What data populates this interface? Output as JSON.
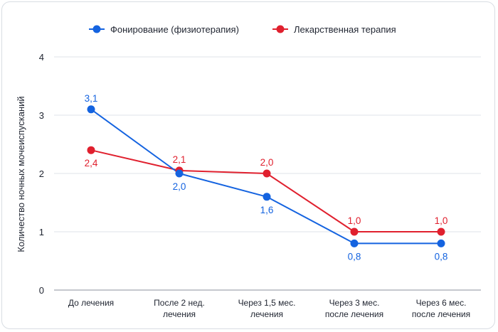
{
  "chart_data": {
    "type": "line",
    "title": "",
    "xlabel": "",
    "ylabel": "Количество ночных мочеиспусканий",
    "ylim": [
      0,
      4
    ],
    "yticks": [
      "0",
      "1",
      "2",
      "3",
      "4"
    ],
    "categories": [
      [
        "До лечения"
      ],
      [
        "После 2 нед.",
        "лечения"
      ],
      [
        "Через 1,5 мес.",
        "лечения"
      ],
      [
        "Через 3 мес.",
        "после лечения"
      ],
      [
        "Через 6 мес.",
        "после лечения"
      ]
    ],
    "legend_position": "top-center",
    "grid": "horizontal",
    "series": [
      {
        "name": "Фонирование (физиотерапия)",
        "color": "#1463e0",
        "values": [
          3.1,
          2.0,
          1.6,
          0.8,
          0.8
        ],
        "labels": [
          "3,1",
          "2,0",
          "1,6",
          "0,8",
          "0,8"
        ],
        "label_side": [
          "above",
          "below",
          "below",
          "below",
          "below"
        ]
      },
      {
        "name": "Лекарственная терапия",
        "color": "#e0202e",
        "values": [
          2.4,
          2.05,
          2.0,
          1.0,
          1.0
        ],
        "labels": [
          "2,4",
          "2,1",
          "2,0",
          "1,0",
          "1,0"
        ],
        "label_side": [
          "below",
          "above",
          "above",
          "above",
          "above"
        ]
      }
    ]
  }
}
